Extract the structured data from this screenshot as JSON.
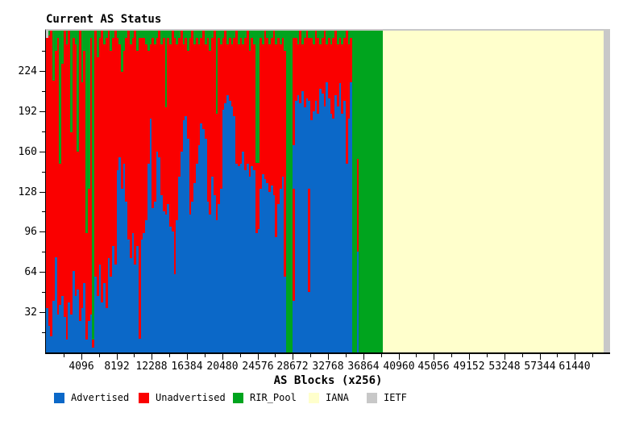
{
  "title": "Current AS Status",
  "colors": {
    "advertised": "#0b68c8",
    "unadvertised": "#fa0000",
    "rir_pool": "#00a41e",
    "iana": "#ffffcc",
    "ietf": "#c8c8c8",
    "axis": "#000000",
    "frame_top": "#c8c8c8",
    "background": "#ffffff"
  },
  "legend": [
    {
      "label": "Advertised",
      "color_key": "advertised",
      "x": 67
    },
    {
      "label": "Unadvertised",
      "color_key": "unadvertised",
      "x": 172
    },
    {
      "label": "RIR_Pool",
      "color_key": "rir_pool",
      "x": 289
    },
    {
      "label": "IANA",
      "color_key": "iana",
      "x": 383
    },
    {
      "label": "IETF",
      "color_key": "ietf",
      "x": 455
    }
  ],
  "chart_data": {
    "type": "bar",
    "stacked": true,
    "title": "Current AS Status",
    "xlabel": "AS Blocks (x256)",
    "ylabel": "",
    "x_range": [
      0,
      65536
    ],
    "y_range": [
      0,
      256
    ],
    "x_major_ticks": [
      4096,
      8192,
      12288,
      16384,
      20480,
      24576,
      28672,
      32768,
      36864,
      40960,
      45056,
      49152,
      53248,
      57344,
      61440
    ],
    "x_minor_step": 2048,
    "y_major_ticks": [
      32,
      64,
      96,
      128,
      160,
      192,
      224
    ],
    "y_minor_step": 16,
    "grid": false,
    "legend_position": "bottom",
    "series_names": [
      "Advertised",
      "Unadvertised",
      "RIR_Pool",
      "IANA",
      "IETF"
    ],
    "block_width_as": 256,
    "note_encoding": "each block entry: m=[blue_top,red_top,green to 256], m0=block0 with gray cap, s=explicit [color,top] segments, g=full RIR_Pool, y=full IANA, e=full IETF; values are AS counts 0-256 estimated from pixels",
    "blocks": [
      [
        "m0",
        35,
        250
      ],
      [
        "m",
        21,
        252
      ],
      [
        "m",
        13,
        256
      ],
      [
        "m",
        41,
        216
      ],
      [
        "m",
        76,
        240
      ],
      [
        "m",
        30,
        250
      ],
      [
        "m",
        38,
        150
      ],
      [
        "m",
        45,
        230
      ],
      [
        "m",
        28,
        256
      ],
      [
        "m",
        10,
        245
      ],
      [
        "m",
        40,
        256
      ],
      [
        "m",
        30,
        175
      ],
      [
        "m",
        65,
        250
      ],
      [
        "m",
        45,
        245
      ],
      [
        "m",
        50,
        160
      ],
      [
        "m",
        25,
        256
      ],
      [
        "m",
        35,
        215
      ],
      [
        "m",
        55,
        240
      ],
      [
        "m",
        10,
        95
      ],
      [
        "m",
        25,
        130
      ],
      [
        "m",
        30,
        250
      ],
      [
        "s",
        [
          [
            "b",
            4
          ],
          [
            "r",
            10
          ],
          [
            "g",
            256
          ]
        ]
      ],
      [
        "m",
        60,
        256
      ],
      [
        "m",
        45,
        235
      ],
      [
        "m",
        70,
        250
      ],
      [
        "m",
        40,
        256
      ],
      [
        "m",
        55,
        245
      ],
      [
        "m",
        35,
        250
      ],
      [
        "m",
        75,
        256
      ],
      [
        "m",
        60,
        240
      ],
      [
        "m",
        85,
        250
      ],
      [
        "m",
        70,
        256
      ],
      [
        "m",
        145,
        250
      ],
      [
        "m",
        155,
        245
      ],
      [
        "m",
        130,
        223
      ],
      [
        "m",
        150,
        240
      ],
      [
        "m",
        120,
        250
      ],
      [
        "m",
        90,
        256
      ],
      [
        "m",
        75,
        245
      ],
      [
        "m",
        95,
        250
      ],
      [
        "m",
        70,
        256
      ],
      [
        "m",
        85,
        240
      ],
      [
        "m",
        11,
        250
      ],
      [
        "m",
        90,
        250
      ],
      [
        "m",
        95,
        250
      ],
      [
        "m",
        105,
        245
      ],
      [
        "m",
        150,
        240
      ],
      [
        "m",
        186,
        245
      ],
      [
        "m",
        115,
        250
      ],
      [
        "m",
        120,
        245
      ],
      [
        "m",
        160,
        250
      ],
      [
        "m",
        155,
        256
      ],
      [
        "m",
        125,
        245
      ],
      [
        "m",
        112,
        250
      ],
      [
        "m",
        110,
        195
      ],
      [
        "m",
        118,
        250
      ],
      [
        "m",
        100,
        245
      ],
      [
        "m",
        96,
        256
      ],
      [
        "m",
        62,
        250
      ],
      [
        "m",
        105,
        245
      ],
      [
        "m",
        140,
        250
      ],
      [
        "m",
        160,
        256
      ],
      [
        "m",
        185,
        245
      ],
      [
        "m",
        188,
        250
      ],
      [
        "m",
        170,
        240
      ],
      [
        "m",
        110,
        250
      ],
      [
        "m",
        120,
        256
      ],
      [
        "m",
        135,
        245
      ],
      [
        "m",
        150,
        250
      ],
      [
        "m",
        165,
        245
      ],
      [
        "m",
        182,
        250
      ],
      [
        "m",
        178,
        256
      ],
      [
        "m",
        170,
        245
      ],
      [
        "m",
        120,
        250
      ],
      [
        "m",
        110,
        240
      ],
      [
        "m",
        140,
        250
      ],
      [
        "m",
        125,
        256
      ],
      [
        "m",
        105,
        190
      ],
      [
        "m",
        118,
        250
      ],
      [
        "m",
        130,
        245
      ],
      [
        "m",
        193,
        250
      ],
      [
        "m",
        198,
        256
      ],
      [
        "m",
        205,
        245
      ],
      [
        "m",
        200,
        250
      ],
      [
        "m",
        196,
        245
      ],
      [
        "m",
        188,
        250
      ],
      [
        "m",
        150,
        256
      ],
      [
        "m",
        148,
        245
      ],
      [
        "m",
        150,
        250
      ],
      [
        "m",
        160,
        245
      ],
      [
        "m",
        145,
        250
      ],
      [
        "m",
        150,
        256
      ],
      [
        "m",
        140,
        240
      ],
      [
        "m",
        148,
        250
      ],
      [
        "m",
        145,
        245
      ],
      [
        "m",
        95,
        151
      ],
      [
        "m",
        98,
        151
      ],
      [
        "m",
        130,
        250
      ],
      [
        "m",
        142,
        245
      ],
      [
        "m",
        138,
        256
      ],
      [
        "m",
        135,
        250
      ],
      [
        "m",
        128,
        245
      ],
      [
        "m",
        133,
        250
      ],
      [
        "m",
        125,
        256
      ],
      [
        "m",
        92,
        245
      ],
      [
        "m",
        118,
        250
      ],
      [
        "m",
        130,
        245
      ],
      [
        "m",
        140,
        250
      ],
      [
        "m",
        60,
        240
      ],
      [
        "g"
      ],
      [
        "g"
      ],
      [
        "g"
      ],
      [
        "s",
        [
          [
            "b",
            41
          ],
          [
            "r",
            130
          ],
          [
            "b",
            165
          ],
          [
            "r",
            250
          ],
          [
            "g",
            256
          ]
        ]
      ],
      [
        "m",
        200,
        250
      ],
      [
        "m",
        205,
        245
      ],
      [
        "m",
        198,
        256
      ],
      [
        "m",
        208,
        245
      ],
      [
        "m",
        195,
        250
      ],
      [
        "m",
        202,
        256
      ],
      [
        "s",
        [
          [
            "b",
            48
          ],
          [
            "r",
            130
          ],
          [
            "b",
            200
          ],
          [
            "r",
            250
          ],
          [
            "g",
            256
          ]
        ]
      ],
      [
        "m",
        185,
        250
      ],
      [
        "m",
        192,
        245
      ],
      [
        "m",
        200,
        256
      ],
      [
        "m",
        190,
        250
      ],
      [
        "m",
        210,
        245
      ],
      [
        "m",
        206,
        250
      ],
      [
        "m",
        196,
        256
      ],
      [
        "m",
        215,
        245
      ],
      [
        "m",
        202,
        250
      ],
      [
        "m",
        190,
        245
      ],
      [
        "m",
        186,
        250
      ],
      [
        "m",
        205,
        256
      ],
      [
        "m",
        196,
        245
      ],
      [
        "m",
        214,
        250
      ],
      [
        "m",
        190,
        245
      ],
      [
        "m",
        200,
        250
      ],
      [
        "m",
        150,
        256
      ],
      [
        "m",
        186,
        245
      ],
      [
        "m",
        215,
        250
      ],
      [
        "g"
      ],
      [
        "g"
      ],
      [
        "m",
        80,
        154
      ],
      [
        "g"
      ],
      [
        "g"
      ],
      [
        "g"
      ],
      [
        "g"
      ],
      [
        "g"
      ],
      [
        "g"
      ],
      [
        "g"
      ],
      [
        "g"
      ],
      [
        "g"
      ],
      [
        "g"
      ],
      [
        "g"
      ],
      [
        "y"
      ],
      [
        "y"
      ],
      [
        "y"
      ],
      [
        "y"
      ],
      [
        "y"
      ],
      [
        "y"
      ],
      [
        "y"
      ],
      [
        "y"
      ],
      [
        "y"
      ],
      [
        "y"
      ],
      [
        "y"
      ],
      [
        "y"
      ],
      [
        "y"
      ],
      [
        "y"
      ],
      [
        "y"
      ],
      [
        "y"
      ],
      [
        "y"
      ],
      [
        "y"
      ],
      [
        "y"
      ],
      [
        "y"
      ],
      [
        "y"
      ],
      [
        "y"
      ],
      [
        "y"
      ],
      [
        "y"
      ],
      [
        "y"
      ],
      [
        "y"
      ],
      [
        "y"
      ],
      [
        "y"
      ],
      [
        "y"
      ],
      [
        "y"
      ],
      [
        "y"
      ],
      [
        "y"
      ],
      [
        "y"
      ],
      [
        "y"
      ],
      [
        "y"
      ],
      [
        "y"
      ],
      [
        "y"
      ],
      [
        "y"
      ],
      [
        "y"
      ],
      [
        "y"
      ],
      [
        "y"
      ],
      [
        "y"
      ],
      [
        "y"
      ],
      [
        "y"
      ],
      [
        "y"
      ],
      [
        "y"
      ],
      [
        "y"
      ],
      [
        "y"
      ],
      [
        "y"
      ],
      [
        "y"
      ],
      [
        "y"
      ],
      [
        "y"
      ],
      [
        "y"
      ],
      [
        "y"
      ],
      [
        "y"
      ],
      [
        "y"
      ],
      [
        "y"
      ],
      [
        "y"
      ],
      [
        "y"
      ],
      [
        "y"
      ],
      [
        "y"
      ],
      [
        "y"
      ],
      [
        "y"
      ],
      [
        "y"
      ],
      [
        "y"
      ],
      [
        "y"
      ],
      [
        "y"
      ],
      [
        "y"
      ],
      [
        "y"
      ],
      [
        "y"
      ],
      [
        "y"
      ],
      [
        "y"
      ],
      [
        "y"
      ],
      [
        "y"
      ],
      [
        "y"
      ],
      [
        "y"
      ],
      [
        "y"
      ],
      [
        "y"
      ],
      [
        "y"
      ],
      [
        "y"
      ],
      [
        "y"
      ],
      [
        "y"
      ],
      [
        "y"
      ],
      [
        "y"
      ],
      [
        "y"
      ],
      [
        "y"
      ],
      [
        "y"
      ],
      [
        "y"
      ],
      [
        "y"
      ],
      [
        "y"
      ],
      [
        "y"
      ],
      [
        "y"
      ],
      [
        "y"
      ],
      [
        "y"
      ],
      [
        "y"
      ],
      [
        "y"
      ],
      [
        "y"
      ],
      [
        "y"
      ],
      [
        "y"
      ],
      [
        "y"
      ],
      [
        "e"
      ],
      [
        "e"
      ],
      [
        "e"
      ]
    ]
  },
  "x_axis": {
    "label": "AS Blocks (x256)"
  },
  "y_axis": {
    "label": ""
  }
}
